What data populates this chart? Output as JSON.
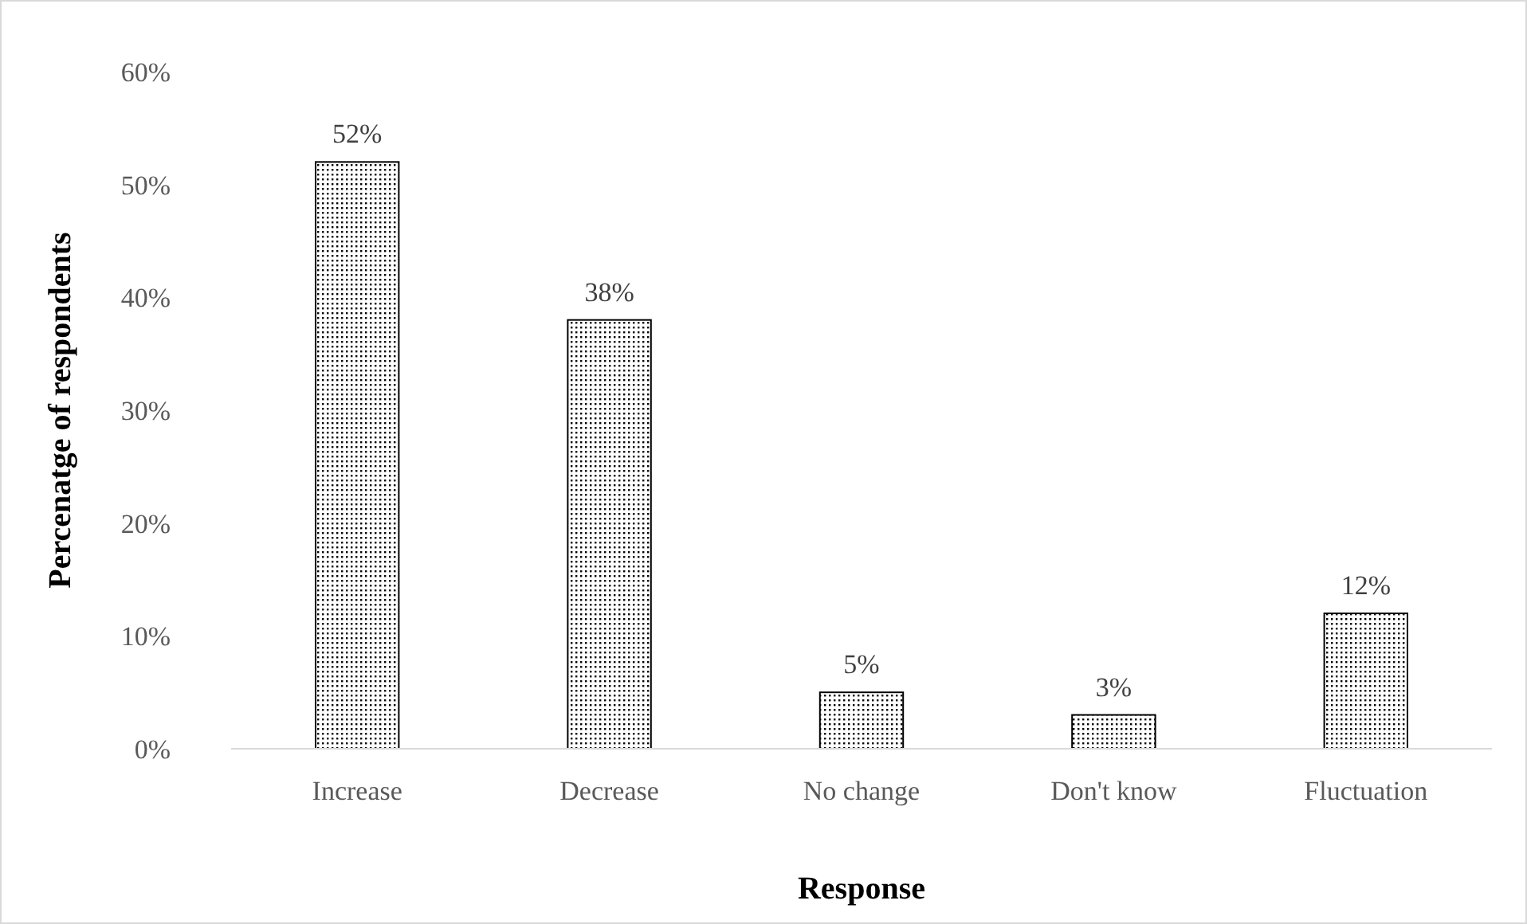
{
  "chart_data": {
    "type": "bar",
    "xlabel": "Response",
    "ylabel": "Percenatge of respondents",
    "categories": [
      "Increase",
      "Decrease",
      "No change",
      "Don't know",
      "Fluctuation"
    ],
    "values": [
      52,
      38,
      5,
      3,
      12
    ],
    "value_labels": [
      "52%",
      "38%",
      "5%",
      "3%",
      "12%"
    ],
    "color": "#000000",
    "ylim": [
      0,
      60
    ],
    "yticks": [
      {
        "value": 0,
        "label": "0%"
      },
      {
        "value": 10,
        "label": "10%"
      },
      {
        "value": 20,
        "label": "20%"
      },
      {
        "value": 30,
        "label": "30%"
      },
      {
        "value": 40,
        "label": "40%"
      },
      {
        "value": 50,
        "label": "50%"
      },
      {
        "value": 60,
        "label": "60%"
      }
    ],
    "grid": false
  }
}
